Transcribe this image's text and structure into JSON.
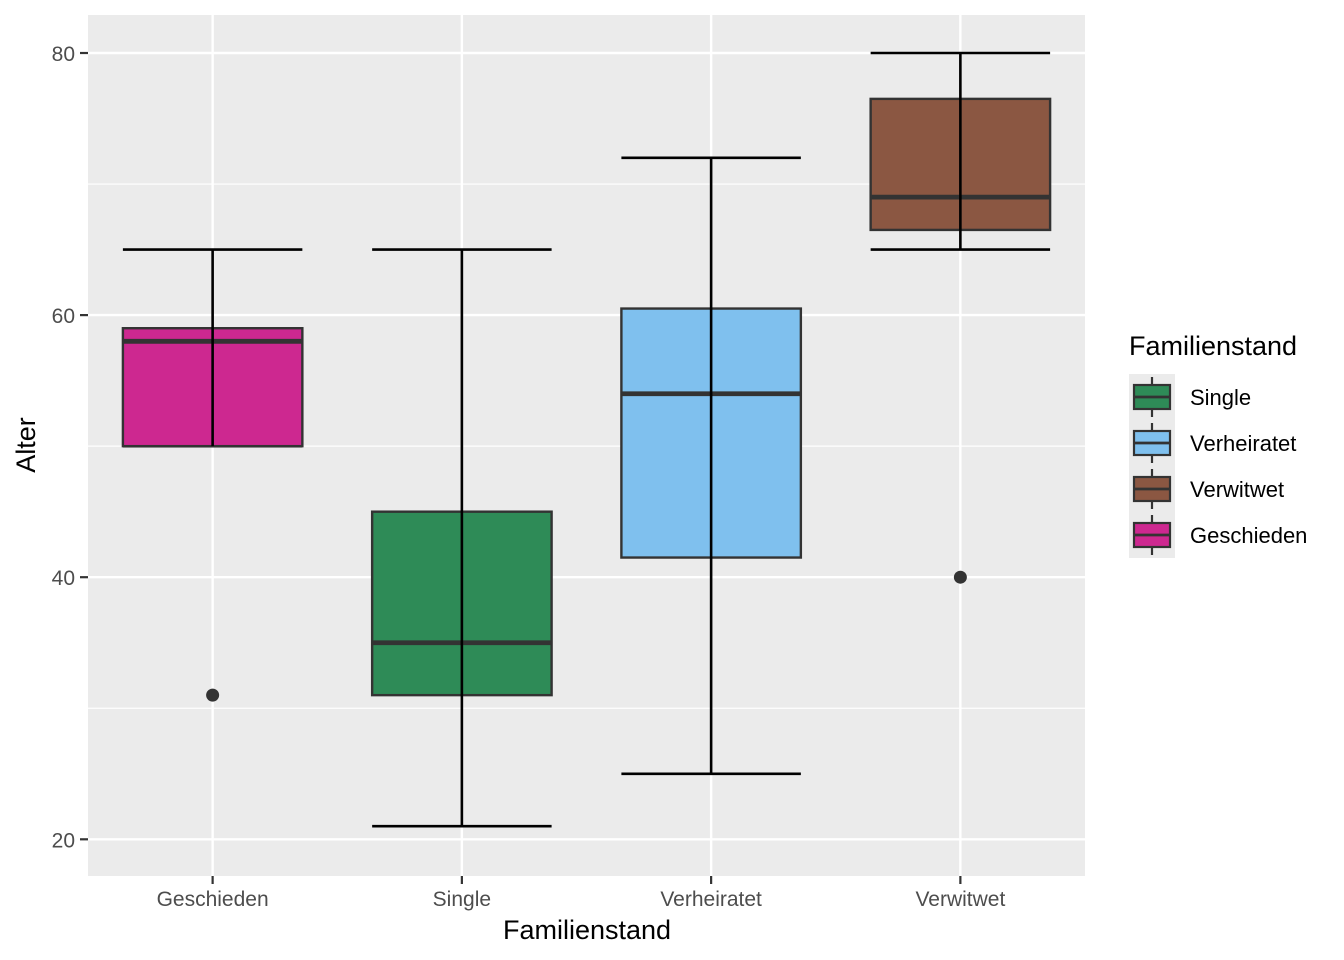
{
  "chart_data": {
    "type": "boxplot",
    "xlabel": "Familienstand",
    "ylabel": "Alter",
    "ylim": [
      17.2,
      82.9
    ],
    "yticks": [
      20,
      40,
      60,
      80
    ],
    "ytick_labels": [
      "20",
      "40",
      "60",
      "80"
    ],
    "categories": [
      "Geschieden",
      "Single",
      "Verheiratet",
      "Verwitwet"
    ],
    "boxes": [
      {
        "category": "Geschieden",
        "whisker_low": 50,
        "q1": 50,
        "median": 58,
        "q3": 59,
        "whisker_high": 65,
        "outliers": [
          31
        ],
        "color": "#CD2890"
      },
      {
        "category": "Single",
        "whisker_low": 21,
        "q1": 31,
        "median": 35,
        "q3": 45,
        "whisker_high": 65,
        "outliers": [],
        "color": "#2E8B57"
      },
      {
        "category": "Verheiratet",
        "whisker_low": 25,
        "q1": 41.5,
        "median": 54,
        "q3": 60.5,
        "whisker_high": 72,
        "outliers": [],
        "color": "#7FC0EE"
      },
      {
        "category": "Verwitwet",
        "whisker_low": 65,
        "q1": 66.5,
        "median": 69,
        "q3": 76.5,
        "whisker_high": 80,
        "outliers": [
          40
        ],
        "color": "#8B5742"
      }
    ],
    "legend": {
      "title": "Familienstand",
      "position": "right",
      "items": [
        {
          "label": "Single",
          "color": "#2E8B57"
        },
        {
          "label": "Verheiratet",
          "color": "#7FC0EE"
        },
        {
          "label": "Verwitwet",
          "color": "#8B5742"
        },
        {
          "label": "Geschieden",
          "color": "#CD2890"
        }
      ]
    },
    "grid": true,
    "panel_background": "#EBEBEB"
  }
}
